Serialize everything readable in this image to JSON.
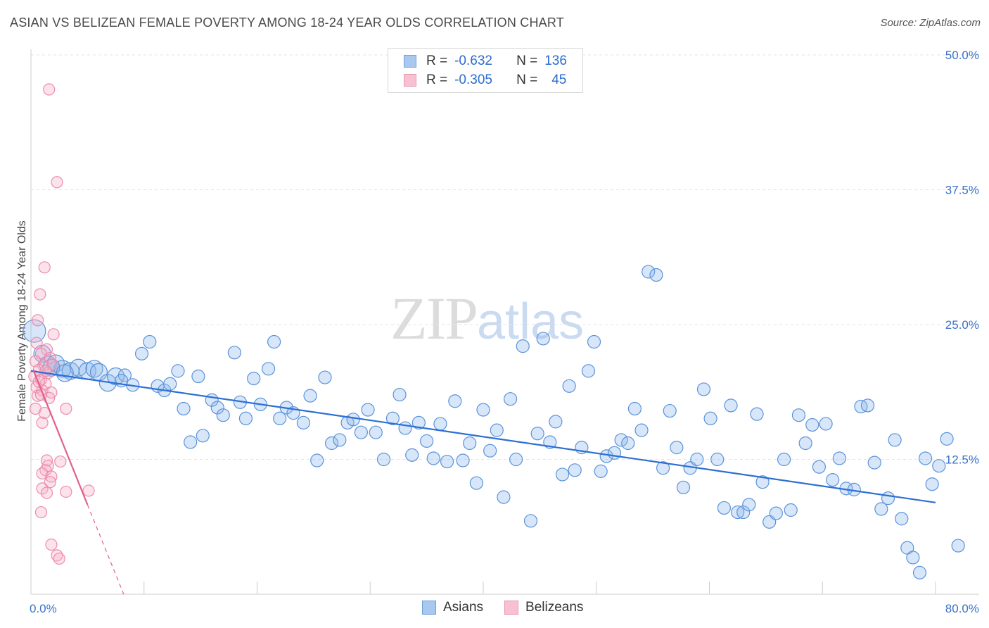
{
  "title": "ASIAN VS BELIZEAN FEMALE POVERTY AMONG 18-24 YEAR OLDS CORRELATION CHART",
  "source": "Source: ZipAtlas.com",
  "watermark": {
    "zip": "ZIP",
    "atlas": "atlas"
  },
  "legend": {
    "r_label": "R =",
    "n_label": "N =",
    "rows": [
      {
        "r": "-0.632",
        "n": "136",
        "color": "#a9c8f0",
        "border": "#6c9fdf"
      },
      {
        "r": "-0.305",
        "n": "45",
        "color": "#f8c1d2",
        "border": "#e995b2"
      }
    ]
  },
  "bottom_legend": [
    {
      "label": "Asians",
      "color": "#a9c8f0",
      "border": "#6c9fdf"
    },
    {
      "label": "Belizeans",
      "color": "#f8c1d2",
      "border": "#e995b2"
    }
  ],
  "chart_data": {
    "type": "scatter",
    "title": "ASIAN VS BELIZEAN FEMALE POVERTY AMONG 18-24 YEAR OLDS CORRELATION CHART",
    "xlabel": "",
    "ylabel": "Female Poverty Among 18-24 Year Olds",
    "xlim": [
      0,
      80
    ],
    "ylim": [
      0,
      50
    ],
    "x_tick_labels": [
      "0.0%",
      "80.0%"
    ],
    "y_ticks": [
      12.5,
      25.0,
      37.5,
      50.0
    ],
    "y_tick_labels": [
      "12.5%",
      "25.0%",
      "37.5%",
      "50.0%"
    ],
    "grid": true,
    "legend_position": "top-center",
    "series": [
      {
        "name": "Asians",
        "color": "#8db7ea",
        "stroke": "#5b93da",
        "trend": {
          "x": [
            0,
            80
          ],
          "y": [
            20.7,
            8.5
          ],
          "color": "#2d6fd3"
        },
        "points": [
          [
            0.3,
            24.4
          ],
          [
            1.0,
            22.3
          ],
          [
            1.5,
            21.3
          ],
          [
            2.2,
            21.4
          ],
          [
            2.8,
            20.9
          ],
          [
            3.5,
            20.7
          ],
          [
            4.2,
            21.0
          ],
          [
            5.0,
            20.7
          ],
          [
            5.6,
            20.9
          ],
          [
            6.0,
            20.6
          ],
          [
            6.8,
            19.6
          ],
          [
            7.5,
            20.2
          ],
          [
            8.3,
            20.3
          ],
          [
            9.0,
            19.4
          ],
          [
            9.8,
            22.3
          ],
          [
            10.5,
            23.4
          ],
          [
            11.2,
            19.3
          ],
          [
            11.8,
            18.9
          ],
          [
            12.3,
            19.5
          ],
          [
            13.0,
            20.7
          ],
          [
            13.5,
            17.2
          ],
          [
            14.1,
            14.1
          ],
          [
            14.8,
            20.2
          ],
          [
            15.2,
            14.7
          ],
          [
            16.0,
            18.0
          ],
          [
            16.5,
            17.3
          ],
          [
            17.0,
            16.6
          ],
          [
            18.0,
            22.4
          ],
          [
            18.5,
            17.8
          ],
          [
            19.0,
            16.3
          ],
          [
            19.7,
            20.0
          ],
          [
            20.3,
            17.6
          ],
          [
            21.0,
            20.9
          ],
          [
            21.5,
            23.4
          ],
          [
            22.0,
            16.3
          ],
          [
            22.6,
            17.3
          ],
          [
            23.2,
            16.8
          ],
          [
            24.1,
            15.9
          ],
          [
            24.7,
            18.4
          ],
          [
            25.3,
            12.4
          ],
          [
            26.0,
            20.1
          ],
          [
            26.6,
            14.0
          ],
          [
            27.3,
            14.3
          ],
          [
            28.0,
            15.9
          ],
          [
            28.5,
            16.2
          ],
          [
            29.2,
            15.0
          ],
          [
            29.8,
            17.1
          ],
          [
            30.5,
            15.0
          ],
          [
            31.2,
            12.5
          ],
          [
            32.0,
            16.3
          ],
          [
            32.6,
            18.5
          ],
          [
            33.1,
            15.4
          ],
          [
            33.7,
            12.9
          ],
          [
            34.3,
            15.9
          ],
          [
            35.0,
            14.2
          ],
          [
            35.6,
            12.6
          ],
          [
            36.2,
            15.8
          ],
          [
            36.8,
            12.3
          ],
          [
            37.5,
            17.9
          ],
          [
            38.2,
            12.4
          ],
          [
            38.8,
            14.0
          ],
          [
            39.4,
            10.3
          ],
          [
            40.0,
            17.1
          ],
          [
            40.6,
            13.3
          ],
          [
            41.2,
            15.2
          ],
          [
            41.8,
            9.0
          ],
          [
            42.4,
            18.1
          ],
          [
            42.9,
            12.5
          ],
          [
            43.5,
            23.0
          ],
          [
            44.2,
            6.8
          ],
          [
            44.8,
            14.9
          ],
          [
            45.3,
            23.7
          ],
          [
            45.9,
            14.1
          ],
          [
            46.4,
            16.0
          ],
          [
            47.0,
            11.1
          ],
          [
            47.6,
            19.3
          ],
          [
            48.1,
            11.5
          ],
          [
            48.7,
            13.6
          ],
          [
            49.3,
            20.7
          ],
          [
            49.8,
            23.4
          ],
          [
            50.4,
            11.4
          ],
          [
            50.9,
            12.8
          ],
          [
            51.6,
            13.1
          ],
          [
            52.2,
            14.3
          ],
          [
            52.8,
            14.0
          ],
          [
            53.4,
            17.2
          ],
          [
            54.0,
            15.2
          ],
          [
            54.6,
            29.9
          ],
          [
            55.3,
            29.6
          ],
          [
            55.9,
            11.7
          ],
          [
            56.5,
            17.0
          ],
          [
            57.1,
            13.6
          ],
          [
            57.7,
            9.9
          ],
          [
            58.3,
            11.7
          ],
          [
            58.9,
            12.5
          ],
          [
            59.5,
            19.0
          ],
          [
            60.1,
            16.3
          ],
          [
            60.7,
            12.5
          ],
          [
            61.3,
            8.0
          ],
          [
            61.9,
            17.5
          ],
          [
            62.5,
            7.6
          ],
          [
            63.0,
            7.6
          ],
          [
            63.5,
            8.3
          ],
          [
            64.2,
            16.7
          ],
          [
            64.7,
            10.4
          ],
          [
            65.3,
            6.7
          ],
          [
            65.9,
            7.5
          ],
          [
            66.6,
            12.5
          ],
          [
            67.2,
            7.8
          ],
          [
            67.9,
            16.6
          ],
          [
            68.5,
            14.0
          ],
          [
            69.1,
            15.7
          ],
          [
            69.7,
            11.8
          ],
          [
            70.3,
            15.8
          ],
          [
            70.9,
            10.6
          ],
          [
            71.5,
            12.6
          ],
          [
            72.1,
            9.8
          ],
          [
            72.8,
            9.7
          ],
          [
            73.4,
            17.4
          ],
          [
            74.0,
            17.5
          ],
          [
            74.6,
            12.2
          ],
          [
            75.2,
            7.9
          ],
          [
            75.8,
            8.9
          ],
          [
            76.4,
            14.3
          ],
          [
            77.0,
            7.0
          ],
          [
            77.5,
            4.3
          ],
          [
            78.0,
            3.4
          ],
          [
            78.6,
            2.0
          ],
          [
            79.1,
            12.6
          ],
          [
            79.7,
            10.2
          ],
          [
            80.3,
            11.9
          ],
          [
            81.0,
            14.4
          ],
          [
            82.0,
            4.5
          ],
          [
            1.8,
            21.0
          ],
          [
            3.0,
            20.5
          ],
          [
            8.0,
            19.8
          ]
        ]
      },
      {
        "name": "Belizeans",
        "color": "#f5afc6",
        "stroke": "#ec8cad",
        "trend": {
          "x": [
            0.2,
            5.0
          ],
          "y": [
            20.8,
            8.3
          ],
          "dash_to": [
            8.2,
            0.0
          ],
          "color": "#e0608f"
        },
        "points": [
          [
            1.6,
            46.8
          ],
          [
            2.3,
            38.2
          ],
          [
            1.2,
            30.3
          ],
          [
            0.8,
            27.8
          ],
          [
            0.6,
            25.4
          ],
          [
            2.0,
            24.1
          ],
          [
            0.5,
            23.3
          ],
          [
            1.4,
            22.7
          ],
          [
            0.9,
            22.3
          ],
          [
            1.7,
            21.9
          ],
          [
            0.4,
            21.6
          ],
          [
            1.1,
            21.2
          ],
          [
            0.7,
            20.8
          ],
          [
            1.5,
            20.5
          ],
          [
            0.3,
            20.2
          ],
          [
            0.9,
            19.9
          ],
          [
            1.3,
            19.5
          ],
          [
            0.5,
            19.2
          ],
          [
            1.0,
            18.9
          ],
          [
            1.8,
            18.7
          ],
          [
            0.6,
            18.4
          ],
          [
            1.6,
            18.2
          ],
          [
            0.4,
            17.2
          ],
          [
            3.1,
            17.2
          ],
          [
            1.2,
            16.8
          ],
          [
            1.0,
            15.9
          ],
          [
            1.4,
            12.4
          ],
          [
            2.6,
            12.3
          ],
          [
            1.5,
            11.9
          ],
          [
            1.3,
            11.5
          ],
          [
            1.0,
            11.2
          ],
          [
            1.8,
            10.9
          ],
          [
            1.7,
            10.4
          ],
          [
            1.0,
            9.8
          ],
          [
            3.1,
            9.5
          ],
          [
            5.1,
            9.6
          ],
          [
            1.4,
            9.4
          ],
          [
            0.9,
            7.6
          ],
          [
            1.8,
            4.6
          ],
          [
            2.3,
            3.6
          ],
          [
            2.5,
            3.3
          ],
          [
            1.9,
            21.3
          ],
          [
            0.7,
            19.7
          ],
          [
            1.3,
            20.7
          ],
          [
            0.9,
            18.5
          ]
        ]
      }
    ]
  }
}
